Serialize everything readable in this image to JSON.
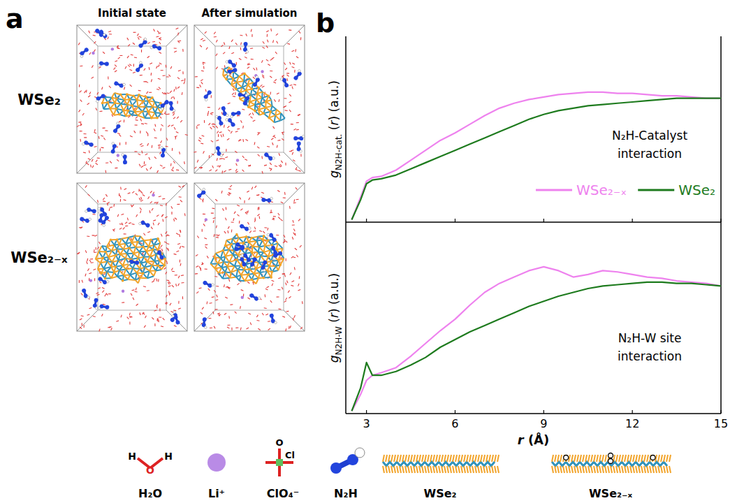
{
  "panel_a": {
    "label": "a",
    "columns": [
      "Initial state",
      "After simulation"
    ],
    "rows": [
      "WSe₂",
      "WSe₂₋ₓ"
    ]
  },
  "panel_b_label": "b",
  "chart_data": [
    {
      "type": "line",
      "ylabel": {
        "main": "g",
        "sub": "N2H-cat.",
        "rest": "(r) (a.u.)"
      },
      "annotation": [
        "N₂H-Catalyst",
        "interaction"
      ],
      "x": [
        2.5,
        2.8,
        3,
        3.2,
        3.5,
        4,
        4.5,
        5,
        5.5,
        6,
        6.5,
        7,
        7.5,
        8,
        8.5,
        9,
        9.5,
        10,
        10.5,
        11,
        11.5,
        12,
        12.5,
        13,
        13.5,
        14,
        14.5,
        15
      ],
      "xlim": [
        2.3,
        15
      ],
      "xticks": [
        3,
        6,
        9,
        12,
        15
      ],
      "ylim": [
        0,
        1.5
      ],
      "tick_labels": false,
      "legend": "lower right",
      "series": [
        {
          "name": "WSe₂₋ₓ",
          "color": "#ee82ee",
          "values": [
            0.02,
            0.2,
            0.33,
            0.36,
            0.37,
            0.42,
            0.5,
            0.58,
            0.66,
            0.72,
            0.79,
            0.86,
            0.92,
            0.96,
            0.99,
            1.01,
            1.03,
            1.04,
            1.05,
            1.05,
            1.04,
            1.04,
            1.03,
            1.02,
            1.02,
            1.01,
            1.0,
            1.0
          ]
        },
        {
          "name": "WSe₂",
          "color": "#1e7b1e",
          "values": [
            0.02,
            0.18,
            0.31,
            0.34,
            0.35,
            0.38,
            0.43,
            0.48,
            0.53,
            0.58,
            0.63,
            0.68,
            0.73,
            0.78,
            0.83,
            0.87,
            0.9,
            0.92,
            0.94,
            0.95,
            0.96,
            0.97,
            0.98,
            0.99,
            1.0,
            1.0,
            1.0,
            1.0
          ]
        }
      ]
    },
    {
      "type": "line",
      "ylabel": {
        "main": "g",
        "sub": "N2H-W",
        "rest": "(r) (a.u.)"
      },
      "annotation": [
        "N₂H-W site",
        "interaction"
      ],
      "xlabel": "r (Å)",
      "x": [
        2.5,
        2.8,
        3,
        3.2,
        3.5,
        4,
        4.5,
        5,
        5.5,
        6,
        6.5,
        7,
        7.5,
        8,
        8.5,
        9,
        9.5,
        10,
        10.5,
        11,
        11.5,
        12,
        12.5,
        13,
        13.5,
        14,
        14.5,
        15
      ],
      "xlim": [
        2.3,
        15
      ],
      "xticks": [
        3,
        6,
        9,
        12,
        15
      ],
      "ylim": [
        0,
        1.5
      ],
      "tick_labels": "x",
      "series": [
        {
          "color": "#ee82ee",
          "values": [
            0.02,
            0.15,
            0.26,
            0.3,
            0.32,
            0.36,
            0.45,
            0.55,
            0.65,
            0.74,
            0.85,
            0.95,
            1.02,
            1.07,
            1.12,
            1.15,
            1.12,
            1.07,
            1.09,
            1.12,
            1.11,
            1.09,
            1.07,
            1.06,
            1.04,
            1.03,
            1.02,
            1.0
          ]
        },
        {
          "color": "#1e7b1e",
          "values": [
            0.02,
            0.2,
            0.4,
            0.3,
            0.3,
            0.33,
            0.38,
            0.44,
            0.52,
            0.58,
            0.64,
            0.69,
            0.74,
            0.79,
            0.84,
            0.88,
            0.92,
            0.95,
            0.98,
            1.0,
            1.01,
            1.02,
            1.03,
            1.03,
            1.02,
            1.02,
            1.01,
            1.0
          ]
        }
      ]
    }
  ],
  "key": [
    {
      "label": "H₂O",
      "atoms": [
        "H",
        "O",
        "H"
      ]
    },
    {
      "label": "Li⁺"
    },
    {
      "label": "ClO₄⁻",
      "atoms": [
        "O",
        "Cl"
      ]
    },
    {
      "label": "N₂H"
    },
    {
      "label": "WSe₂"
    },
    {
      "label": "WSe₂₋ₓ"
    }
  ]
}
